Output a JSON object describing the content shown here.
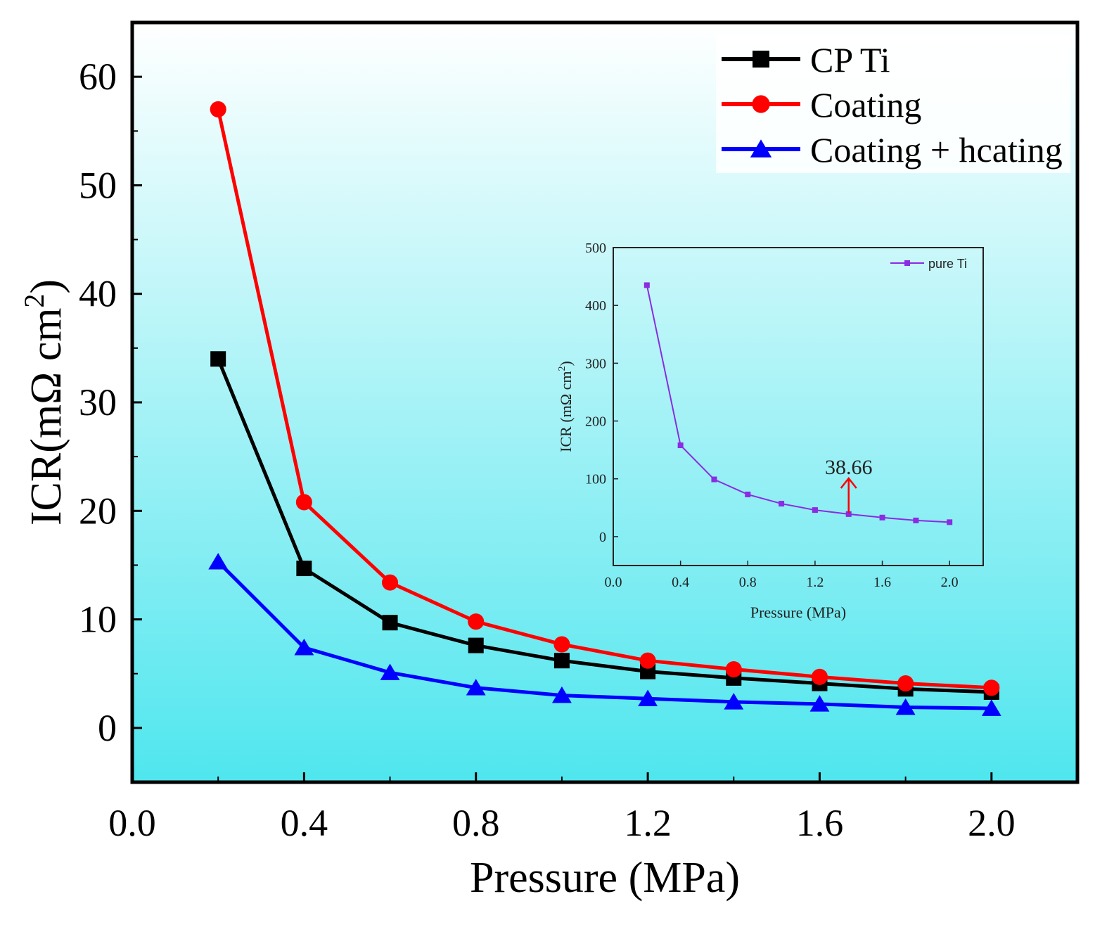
{
  "chart_data": [
    {
      "type": "line",
      "role": "main",
      "xlabel": "Pressure (MPa)",
      "ylabel_prefix": "ICR(mΩ cm",
      "ylabel_sup": "2",
      "ylabel_suffix": ")",
      "xlim": [
        0.0,
        2.2
      ],
      "ylim": [
        -5,
        65
      ],
      "xticks": [
        0.0,
        0.4,
        0.8,
        1.2,
        1.6,
        2.0
      ],
      "xtick_labels": [
        "0.0",
        "0.4",
        "0.8",
        "1.2",
        "1.6",
        "2.0"
      ],
      "yticks": [
        0,
        10,
        20,
        30,
        40,
        50,
        60
      ],
      "ytick_labels": [
        "0",
        "10",
        "20",
        "30",
        "40",
        "50",
        "60"
      ],
      "legend_position": "top-right",
      "x": [
        0.2,
        0.4,
        0.6,
        0.8,
        1.0,
        1.2,
        1.4,
        1.6,
        1.8,
        2.0
      ],
      "series": [
        {
          "name": "CP Ti",
          "color": "#000000",
          "marker": "square",
          "values": [
            34.0,
            14.7,
            9.7,
            7.6,
            6.2,
            5.2,
            4.6,
            4.1,
            3.6,
            3.3
          ]
        },
        {
          "name": "Coating",
          "color": "#ff0000",
          "marker": "circle",
          "values": [
            57.0,
            20.8,
            13.4,
            9.8,
            7.7,
            6.2,
            5.4,
            4.7,
            4.1,
            3.7
          ]
        },
        {
          "name": "Coating + hcating",
          "color": "#0000ff",
          "marker": "triangle",
          "values": [
            15.3,
            7.4,
            5.1,
            3.7,
            3.0,
            2.7,
            2.4,
            2.2,
            1.9,
            1.8
          ]
        }
      ]
    },
    {
      "type": "line",
      "role": "inset",
      "xlabel": "Pressure (MPa)",
      "ylabel_prefix": "ICR (mΩ cm",
      "ylabel_sup": "2",
      "ylabel_suffix": ")",
      "xlim": [
        0.0,
        2.2
      ],
      "ylim": [
        -50,
        500
      ],
      "xticks": [
        0.0,
        0.4,
        0.8,
        1.2,
        1.6,
        2.0
      ],
      "xtick_labels": [
        "0.0",
        "0.4",
        "0.8",
        "1.2",
        "1.6",
        "2.0"
      ],
      "yticks": [
        0,
        100,
        200,
        300,
        400,
        500
      ],
      "ytick_labels": [
        "0",
        "100",
        "200",
        "300",
        "400",
        "500"
      ],
      "legend_position": "top-right",
      "x": [
        0.2,
        0.4,
        0.6,
        0.8,
        1.0,
        1.2,
        1.4,
        1.6,
        1.8,
        2.0
      ],
      "series": [
        {
          "name": "pure Ti",
          "color": "#8b2be2",
          "marker": "square",
          "values": [
            435,
            158,
            99,
            73,
            57,
            46,
            39,
            33,
            28,
            25
          ]
        }
      ],
      "annotation": {
        "text": "38.66",
        "x": 1.4,
        "y": 38.66,
        "color": "#ff0000"
      }
    }
  ]
}
